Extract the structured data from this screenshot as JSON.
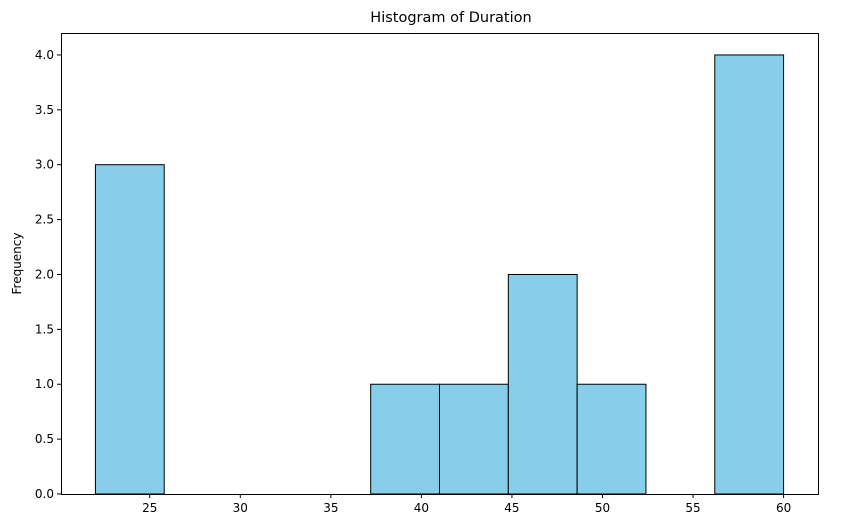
{
  "chart_data": {
    "type": "bar",
    "title": "Histogram of Duration",
    "xlabel": "",
    "ylabel": "Frequency",
    "bins": [
      {
        "start": 22.0,
        "end": 25.8,
        "count": 3
      },
      {
        "start": 25.8,
        "end": 29.6,
        "count": 0
      },
      {
        "start": 29.6,
        "end": 33.4,
        "count": 0
      },
      {
        "start": 33.4,
        "end": 37.2,
        "count": 0
      },
      {
        "start": 37.2,
        "end": 41.0,
        "count": 1
      },
      {
        "start": 41.0,
        "end": 44.8,
        "count": 1
      },
      {
        "start": 44.8,
        "end": 48.6,
        "count": 2
      },
      {
        "start": 48.6,
        "end": 52.4,
        "count": 1
      },
      {
        "start": 52.4,
        "end": 56.2,
        "count": 0
      },
      {
        "start": 56.2,
        "end": 60.0,
        "count": 4
      }
    ],
    "xlim": [
      20.1,
      61.9
    ],
    "ylim": [
      0,
      4.2
    ],
    "x_ticks": [
      25,
      30,
      35,
      40,
      45,
      50,
      55,
      60
    ],
    "x_tick_labels": [
      "25",
      "30",
      "35",
      "40",
      "45",
      "50",
      "55",
      "60"
    ],
    "y_ticks": [
      0,
      0.5,
      1,
      1.5,
      2,
      2.5,
      3,
      3.5,
      4
    ],
    "y_tick_labels": [
      "0.0",
      "0.5",
      "1.0",
      "1.5",
      "2.0",
      "2.5",
      "3.0",
      "3.5",
      "4.0"
    ],
    "grid": false,
    "bar_color": "#87CEEB",
    "edge_color": "#000000"
  }
}
